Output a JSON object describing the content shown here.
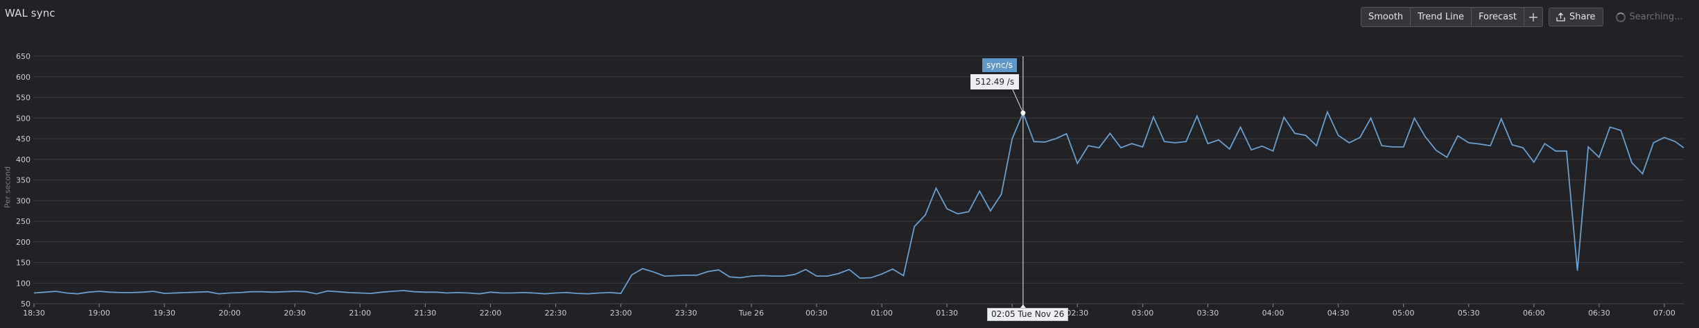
{
  "panel": {
    "title": "WAL sync",
    "y_axis_label": "Per second"
  },
  "toolbar": {
    "smooth_label": "Smooth",
    "trend_line_label": "Trend Line",
    "forecast_label": "Forecast",
    "add_icon": "plus-icon",
    "share_label": "Share",
    "share_icon": "upload-icon",
    "searching_label": "Searching...",
    "searching_icon": "spinner-icon"
  },
  "tooltip": {
    "series_label": "sync/s",
    "value_label": "512.49 /s",
    "time_label": "02:05 Tue Nov 26"
  },
  "colors": {
    "background": "#212126",
    "line": "#6a9fcf",
    "grid": "#3a3a40",
    "tooltip_series_bg": "#5e97c8"
  },
  "chart_data": {
    "type": "line",
    "title": "WAL sync",
    "xlabel": "",
    "ylabel": "Per second",
    "ylim": [
      50,
      650
    ],
    "yticks": [
      50,
      100,
      150,
      200,
      250,
      300,
      350,
      400,
      450,
      500,
      550,
      600,
      650
    ],
    "xticks": [
      "18:30",
      "19:00",
      "19:30",
      "20:00",
      "20:30",
      "21:00",
      "21:30",
      "22:00",
      "22:30",
      "23:00",
      "23:30",
      "Tue 26",
      "00:30",
      "01:00",
      "01:30",
      "",
      "02:30",
      "03:00",
      "03:30",
      "04:00",
      "04:30",
      "05:00",
      "05:30",
      "06:00",
      "06:30",
      "07:00"
    ],
    "grid": true,
    "legend": "none",
    "interval_minutes": 5,
    "start_time": "18:30",
    "series": [
      {
        "name": "sync/s",
        "values": [
          76,
          78,
          80,
          76,
          74,
          78,
          80,
          78,
          77,
          77,
          78,
          80,
          75,
          76,
          77,
          78,
          79,
          74,
          76,
          77,
          79,
          79,
          78,
          79,
          80,
          79,
          74,
          81,
          79,
          77,
          76,
          75,
          78,
          80,
          82,
          79,
          78,
          78,
          76,
          77,
          76,
          74,
          78,
          76,
          76,
          77,
          76,
          74,
          76,
          77,
          75,
          74,
          76,
          77,
          75,
          120,
          135,
          127,
          117,
          118,
          119,
          119,
          128,
          132,
          115,
          113,
          117,
          118,
          117,
          117,
          121,
          133,
          117,
          117,
          123,
          133,
          112,
          113,
          122,
          134,
          118,
          237,
          265,
          330,
          280,
          268,
          273,
          323,
          275,
          315,
          450,
          512.49,
          443,
          442,
          450,
          462,
          390,
          433,
          428,
          463,
          428,
          438,
          430,
          503,
          443,
          440,
          443,
          505,
          438,
          447,
          425,
          478,
          423,
          432,
          420,
          502,
          463,
          458,
          433,
          515,
          458,
          440,
          453,
          500,
          433,
          430,
          430,
          500,
          455,
          422,
          405,
          457,
          440,
          437,
          433,
          498,
          435,
          428,
          393,
          438,
          420,
          420,
          130,
          430,
          405,
          478,
          470,
          392,
          365,
          440,
          453,
          443,
          428
        ]
      }
    ],
    "highlight": {
      "time": "02:05 Tue Nov 26",
      "value": 512.49,
      "unit": "/s"
    }
  }
}
